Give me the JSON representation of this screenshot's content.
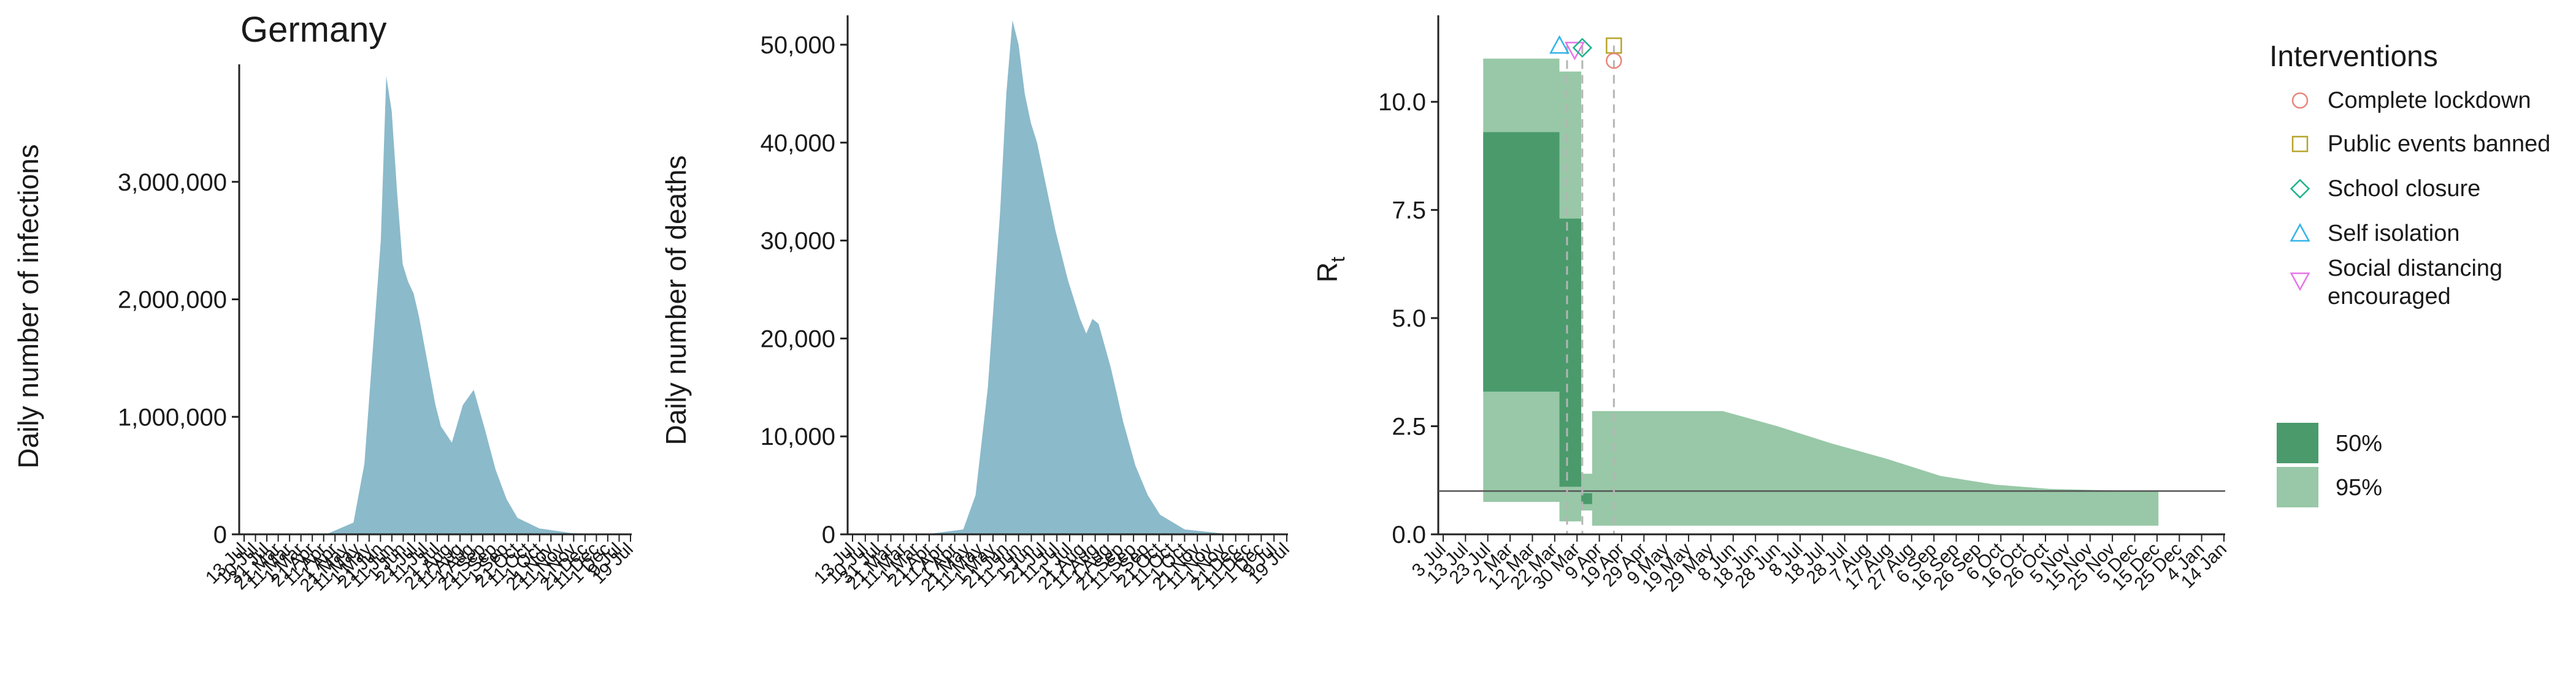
{
  "colors": {
    "area_fill": "#8bbacb",
    "ci50": "#4a9a6c",
    "ci95": "#98c8a7",
    "axis": "#222222",
    "ref_line": "#555555",
    "event_line": "#b5b5b5",
    "markers": {
      "Complete lockdown": "#e8857a",
      "Public events banned": "#b6a52a",
      "School closure": "#1db38b",
      "Self isolation": "#33b3e8",
      "Social distancing encouraged": "#e676e6"
    }
  },
  "legend": {
    "interventions_title": "Interventions",
    "interventions": [
      {
        "label": "Complete lockdown",
        "marker": "circle"
      },
      {
        "label": "Public events banned",
        "marker": "square"
      },
      {
        "label": "School closure",
        "marker": "diamond"
      },
      {
        "label": "Self isolation",
        "marker": "triangle-up"
      },
      {
        "label": "Social distancing",
        "label2": "encouraged",
        "marker": "triangle-down"
      }
    ],
    "ci": [
      {
        "label": "50%"
      },
      {
        "label": "95%"
      }
    ]
  },
  "chart_data": [
    {
      "type": "area",
      "title": "Germany",
      "ylabel": "Daily number of infections",
      "ylim": [
        0,
        4000000
      ],
      "yticks": [
        0,
        1000000,
        2000000,
        3000000
      ],
      "ytick_labels": [
        "0",
        "1,000,000",
        "2,000,000",
        "3,000,000"
      ],
      "x": [
        0,
        15,
        20,
        22,
        25,
        26,
        27,
        28,
        29,
        30,
        31,
        32,
        33,
        35,
        36,
        38,
        40,
        42,
        44,
        46,
        48,
        50,
        54,
        60,
        70
      ],
      "values": [
        0,
        0,
        100000,
        600000,
        2500000,
        3900000,
        3600000,
        2900000,
        2300000,
        2150000,
        2050000,
        1850000,
        1600000,
        1100000,
        920000,
        780000,
        1100000,
        1230000,
        900000,
        550000,
        300000,
        140000,
        50000,
        10000,
        0
      ],
      "date_labels": [
        "13 Jul",
        "10 Jul",
        "31 Jul",
        "21 Mar",
        "11 Mar",
        "1 Mar",
        "21 Apr",
        "11 Apr",
        "1 Apr",
        "21 May",
        "11 May",
        "1 May",
        "21 Jun",
        "11 Jun",
        "1 Jun",
        "21 Jul",
        "11 Jul",
        "1 Jul",
        "21 Aug",
        "11 Aug",
        "1 Aug",
        "21 Sep",
        "11 Sep",
        "1 Sep",
        "21 Oct",
        "11 Oct",
        "1 Oct",
        "21 Nov",
        "11 Nov",
        "1 Nov",
        "21 Dec",
        "11 Dec",
        "1 Dec",
        "9 Jul",
        "19 Jul"
      ]
    },
    {
      "type": "area",
      "ylabel": "Daily number of deaths",
      "ylim": [
        0,
        53000
      ],
      "yticks": [
        0,
        10000,
        20000,
        30000,
        40000,
        50000
      ],
      "ytick_labels": [
        "0",
        "10,000",
        "20,000",
        "30,000",
        "40,000",
        "50,000"
      ],
      "x": [
        0,
        12,
        18,
        20,
        22,
        24,
        25,
        26,
        27,
        28,
        29,
        30,
        31,
        33,
        35,
        37,
        38,
        39,
        40,
        42,
        44,
        46,
        48,
        50,
        54,
        60,
        70
      ],
      "values": [
        0,
        0,
        500,
        4000,
        15000,
        33000,
        45000,
        52500,
        50000,
        45000,
        42000,
        40000,
        37000,
        31000,
        26000,
        22000,
        20500,
        22000,
        21500,
        17000,
        11500,
        7000,
        4000,
        2000,
        500,
        100,
        0
      ],
      "date_labels": [
        "13 Jul",
        "10 Jul",
        "31 Jul",
        "21 Mar",
        "11 Mar",
        "1 Mar",
        "21 Apr",
        "11 Apr",
        "1 Apr",
        "21 May",
        "11 May",
        "1 May",
        "21 Jun",
        "11 Jun",
        "1 Jun",
        "21 Jul",
        "11 Jul",
        "1 Jul",
        "21 Aug",
        "11 Aug",
        "1 Aug",
        "21 Sep",
        "11 Sep",
        "1 Sep",
        "21 Oct",
        "11 Oct",
        "1 Oct",
        "21 Nov",
        "11 Nov",
        "1 Nov",
        "21 Dec",
        "11 Dec",
        "1 Dec",
        "9 Jul",
        "19 Jul"
      ]
    },
    {
      "type": "area",
      "ylabel": "R",
      "ylabel_sub": "t",
      "ylim": [
        0,
        12
      ],
      "yticks": [
        0,
        2.5,
        5,
        7.5,
        10
      ],
      "ytick_labels": [
        "0.0",
        "2.5",
        "5.0",
        "7.5",
        "10.0"
      ],
      "xlim": [
        0,
        70
      ],
      "reference_line": 1.0,
      "ci95_x": [
        3,
        3,
        10,
        10,
        12,
        12,
        13,
        13,
        15,
        15,
        25,
        30,
        35,
        40,
        45,
        50,
        55,
        60,
        65
      ],
      "ci95_hi": [
        11.0,
        11.0,
        11.0,
        10.7,
        10.7,
        1.4,
        1.4,
        2.85,
        2.85,
        2.85,
        2.85,
        2.5,
        2.1,
        1.75,
        1.35,
        1.15,
        1.05,
        1.02,
        1.0
      ],
      "ci95_lo": [
        0.75,
        0.75,
        0.75,
        0.3,
        0.3,
        0.55,
        0.55,
        0.2,
        0.2,
        0.2,
        0.2,
        0.2,
        0.2,
        0.2,
        0.2,
        0.2,
        0.2,
        0.2,
        0.2
      ],
      "ci50_x": [
        3,
        3,
        10,
        10,
        12,
        12,
        13,
        13,
        15,
        15,
        25,
        30,
        35,
        40,
        45,
        50,
        55,
        60,
        65
      ],
      "ci50_hi": [
        9.3,
        9.3,
        9.3,
        7.3,
        7.3,
        0.95,
        0.95,
        1.0,
        1.0,
        1.0,
        1.0,
        1.0,
        1.0,
        1.0,
        1.0,
        1.0,
        1.0,
        1.0,
        1.0
      ],
      "ci50_lo": [
        3.3,
        3.3,
        3.3,
        1.1,
        1.1,
        0.7,
        0.7,
        1.0,
        1.0,
        1.0,
        1.0,
        1.0,
        1.0,
        1.0,
        1.0,
        1.0,
        1.0,
        1.0,
        1.0
      ],
      "interventions": [
        {
          "name": "Self isolation",
          "x": 10.0,
          "y": 11.3
        },
        {
          "name": "Social distancing encouraged",
          "x": 11.4,
          "y": 11.2
        },
        {
          "name": "School closure",
          "x": 12.1,
          "y": 11.25
        },
        {
          "name": "Public events banned",
          "x": 15.0,
          "y": 11.3
        },
        {
          "name": "Complete lockdown",
          "x": 15.0,
          "y": 10.95
        }
      ],
      "date_labels": [
        "3 Jul",
        "13 Jul",
        "23 Jul",
        "2 Mar",
        "12 Mar",
        "22 Mar",
        "30 Mar",
        "9 Apr",
        "19 Apr",
        "29 Apr",
        "9 May",
        "19 May",
        "29 May",
        "8 Jun",
        "18 Jun",
        "28 Jun",
        "8 Jul",
        "18 Jul",
        "28 Jul",
        "7 Aug",
        "17 Aug",
        "27 Aug",
        "6 Sep",
        "16 Sep",
        "26 Sep",
        "6 Oct",
        "16 Oct",
        "26 Oct",
        "5 Nov",
        "15 Nov",
        "25 Nov",
        "5 Dec",
        "15 Dec",
        "25 Dec",
        "4 Jan",
        "14 Jan"
      ]
    }
  ]
}
